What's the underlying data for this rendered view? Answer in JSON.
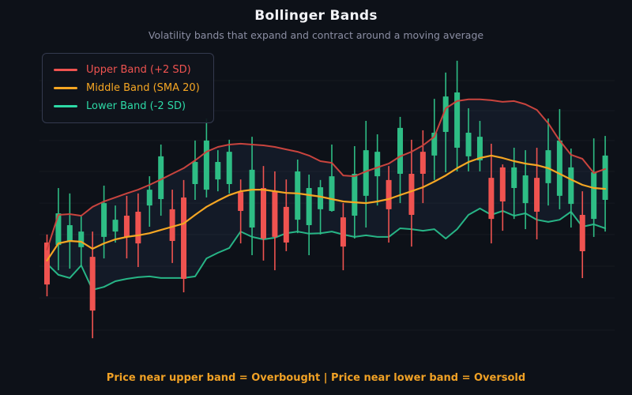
{
  "header": {
    "title": "Bollinger Bands",
    "subtitle": "Volatility bands that expand and contract around a moving average"
  },
  "legend": {
    "items": [
      {
        "label": "Upper Band (+2 SD)",
        "color": "#ef5350"
      },
      {
        "label": "Middle Band (SMA 20)",
        "color": "#f5a623"
      },
      {
        "label": "Lower Band (-2 SD)",
        "color": "#2dd9a6"
      }
    ]
  },
  "footer": {
    "note": "Price near upper band = Overbought | Price near lower band = Oversold",
    "color": "#f0a125"
  },
  "chart_data": {
    "type": "candlestick",
    "title": "Bollinger Bands",
    "x_count": 50,
    "ylim": [
      0,
      112
    ],
    "grid": true,
    "grid_values": [
      6.5,
      18.5,
      30.3,
      42.1,
      53.8,
      65.6,
      77.1,
      88.2,
      99.4
    ],
    "legend_position": "top-left",
    "colors": {
      "bull": "#2ebd85",
      "bear": "#ef5350",
      "upper_line": "#c9443e",
      "middle_line": "#f5a623",
      "lower_line": "#27b586",
      "band_fill": "rgba(104,138,218,0.08)",
      "grid_color": "rgba(255,255,255,0.045)"
    },
    "candles_format": [
      "open",
      "high",
      "low",
      "close"
    ],
    "candles": [
      [
        39.1,
        42.1,
        19.1,
        23.5
      ],
      [
        38.2,
        59.4,
        28.8,
        50.0
      ],
      [
        39.7,
        57.4,
        29.4,
        45.6
      ],
      [
        37.4,
        49.1,
        30.3,
        43.2
      ],
      [
        33.8,
        43.2,
        3.5,
        13.8
      ],
      [
        41.2,
        60.3,
        33.2,
        53.8
      ],
      [
        43.2,
        52.9,
        39.1,
        47.6
      ],
      [
        49.1,
        56.5,
        33.2,
        41.2
      ],
      [
        50.6,
        57.4,
        30.0,
        38.8
      ],
      [
        52.9,
        63.8,
        45.0,
        58.8
      ],
      [
        55.3,
        75.6,
        49.1,
        71.2
      ],
      [
        51.5,
        58.8,
        31.5,
        39.7
      ],
      [
        55.9,
        62.4,
        20.6,
        25.6
      ],
      [
        60.9,
        77.1,
        55.0,
        69.1
      ],
      [
        58.8,
        85.3,
        55.9,
        77.1
      ],
      [
        62.6,
        73.5,
        58.2,
        69.1
      ],
      [
        60.9,
        77.4,
        57.4,
        72.9
      ],
      [
        57.9,
        62.6,
        38.8,
        50.9
      ],
      [
        44.7,
        78.5,
        34.4,
        66.2
      ],
      [
        59.4,
        67.6,
        32.4,
        40.6
      ],
      [
        58.2,
        65.6,
        28.8,
        41.2
      ],
      [
        52.4,
        62.6,
        35.9,
        39.1
      ],
      [
        47.6,
        70.0,
        42.6,
        65.6
      ],
      [
        45.6,
        64.4,
        34.4,
        59.4
      ],
      [
        51.5,
        62.4,
        42.1,
        59.7
      ],
      [
        50.9,
        75.6,
        50.6,
        63.8
      ],
      [
        48.5,
        53.8,
        28.8,
        37.6
      ],
      [
        49.1,
        75.0,
        40.6,
        64.7
      ],
      [
        56.5,
        84.4,
        44.7,
        73.5
      ],
      [
        63.8,
        79.4,
        52.9,
        72.9
      ],
      [
        62.4,
        67.6,
        39.1,
        51.5
      ],
      [
        64.7,
        85.9,
        53.8,
        81.8
      ],
      [
        64.7,
        77.4,
        37.6,
        49.4
      ],
      [
        72.9,
        80.9,
        53.8,
        64.7
      ],
      [
        71.5,
        92.6,
        62.4,
        80.0
      ],
      [
        80.3,
        102.4,
        65.3,
        93.5
      ],
      [
        74.4,
        106.8,
        65.6,
        95.0
      ],
      [
        71.2,
        89.1,
        65.6,
        80.0
      ],
      [
        69.7,
        84.4,
        65.6,
        78.5
      ],
      [
        63.2,
        75.9,
        38.8,
        47.9
      ],
      [
        67.1,
        68.2,
        43.5,
        54.4
      ],
      [
        59.4,
        74.4,
        47.9,
        67.1
      ],
      [
        53.8,
        73.5,
        44.1,
        64.1
      ],
      [
        63.2,
        74.4,
        40.3,
        50.6
      ],
      [
        61.2,
        85.3,
        52.9,
        73.5
      ],
      [
        56.5,
        88.8,
        51.5,
        77.1
      ],
      [
        53.5,
        74.1,
        44.7,
        67.1
      ],
      [
        49.4,
        58.2,
        25.9,
        35.9
      ],
      [
        47.9,
        77.9,
        41.2,
        65.3
      ],
      [
        55.0,
        78.8,
        43.2,
        71.5
      ]
    ],
    "series": [
      {
        "name": "Upper Band (+2 SD)",
        "values": [
          36.5,
          49.4,
          49.7,
          49.1,
          52.4,
          54.4,
          55.9,
          57.4,
          58.8,
          60.6,
          62.6,
          64.7,
          66.8,
          69.7,
          72.9,
          74.7,
          75.6,
          75.9,
          75.6,
          75.3,
          74.7,
          73.8,
          72.9,
          71.5,
          69.4,
          68.8,
          64.1,
          63.8,
          65.6,
          67.1,
          68.5,
          71.2,
          72.9,
          75.3,
          78.5,
          89.1,
          91.8,
          92.4,
          92.4,
          92.1,
          91.5,
          91.8,
          90.6,
          88.5,
          83.5,
          77.1,
          71.8,
          70.3,
          65.0,
          66.5
        ]
      },
      {
        "name": "Middle Band (SMA 20)",
        "values": [
          32.4,
          38.8,
          39.7,
          39.4,
          36.8,
          38.8,
          40.3,
          41.2,
          41.8,
          42.6,
          43.8,
          45.0,
          46.2,
          49.4,
          52.4,
          54.7,
          56.8,
          58.2,
          58.8,
          58.8,
          58.2,
          57.6,
          57.4,
          56.8,
          56.2,
          55.3,
          54.4,
          54.1,
          53.8,
          54.4,
          55.3,
          56.8,
          58.2,
          59.7,
          61.8,
          64.1,
          66.8,
          69.1,
          70.6,
          71.5,
          70.6,
          69.4,
          68.5,
          67.9,
          66.8,
          64.7,
          62.6,
          60.6,
          59.4,
          59.1
        ]
      },
      {
        "name": "Lower Band (-2 SD)",
        "values": [
          31.2,
          27.1,
          25.9,
          30.6,
          21.5,
          22.6,
          24.7,
          25.6,
          26.2,
          26.5,
          25.9,
          25.9,
          25.9,
          26.5,
          33.2,
          35.3,
          37.1,
          43.2,
          41.2,
          40.3,
          40.9,
          42.6,
          43.2,
          42.4,
          42.6,
          43.2,
          42.1,
          41.2,
          41.8,
          41.2,
          41.2,
          44.4,
          44.1,
          43.5,
          44.1,
          40.6,
          44.1,
          49.4,
          51.8,
          49.4,
          50.9,
          49.1,
          50.0,
          47.6,
          46.8,
          47.6,
          50.6,
          45.0,
          45.9,
          44.4
        ]
      }
    ]
  }
}
